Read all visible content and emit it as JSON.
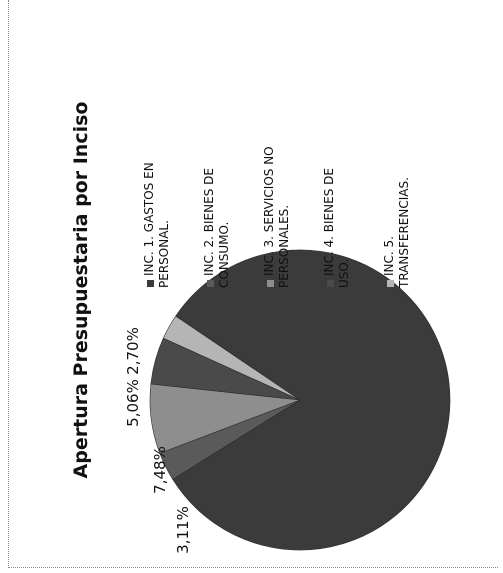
{
  "chart_data": {
    "type": "pie",
    "title": "Apertura Presupuestaria por Inciso",
    "slices": [
      {
        "label": "INC. 1. GASTOS EN PERSONAL.",
        "value": 81.65,
        "data_label": "",
        "color": "#3b3b3b"
      },
      {
        "label": "INC. 2. BIENES DE CONSUMO.",
        "value": 3.11,
        "data_label": "3,11%",
        "color": "#5a5a5a"
      },
      {
        "label": "INC. 3. SERVICIOS NO PERSONALES.",
        "value": 7.48,
        "data_label": "7,48%",
        "color": "#8e8e8e"
      },
      {
        "label": "INC. 4. BIENES DE USO.",
        "value": 5.06,
        "data_label": "5,06%",
        "color": "#4a4a4a"
      },
      {
        "label": "INC. 5. TRANSFERENCIAS.",
        "value": 2.7,
        "data_label": "2,70%",
        "color": "#b5b5b5"
      }
    ],
    "legend_lines": [
      [
        "INC. 1. GASTOS EN",
        "PERSONAL."
      ],
      [
        "INC. 2. BIENES DE",
        "CONSUMO."
      ],
      [
        "INC. 3. SERVICIOS NO",
        "PERSONALES."
      ],
      [
        "INC. 4. BIENES DE",
        "USO."
      ],
      [
        "INC. 5.",
        "TRANSFERENCIAS."
      ]
    ],
    "legend_position": "right",
    "orientation": "rotated 90° counter-clockwise"
  }
}
